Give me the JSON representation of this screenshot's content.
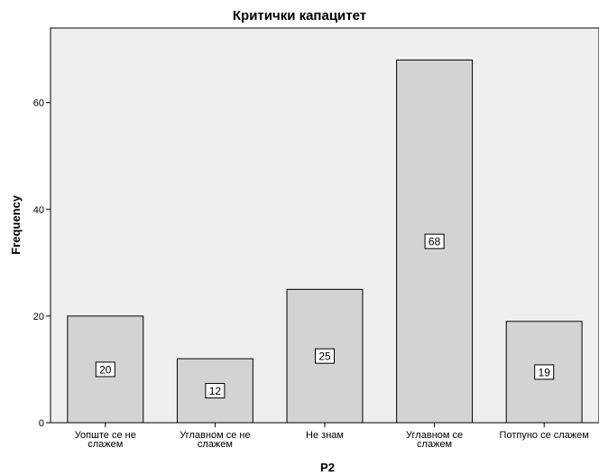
{
  "chart_data": {
    "type": "bar",
    "title": "Критички капацитет",
    "xlabel": "P2",
    "ylabel": "Frequency",
    "categories": [
      [
        "Уопште се не",
        "слажем"
      ],
      [
        "Углавном се не",
        "слажем"
      ],
      [
        "Не знам"
      ],
      [
        "Углавном се",
        "слажем"
      ],
      [
        "Потпуно се слажем"
      ]
    ],
    "values": [
      20,
      12,
      25,
      68,
      19
    ],
    "ylim": [
      0,
      74
    ],
    "yticks": [
      0,
      20,
      40,
      60
    ],
    "grid": false,
    "legend": "none",
    "colors": {
      "plot_background": "#efefef",
      "bar_fill": "#d3d3d3",
      "bar_stroke": "#000000",
      "label_box": "#ffffff"
    }
  }
}
